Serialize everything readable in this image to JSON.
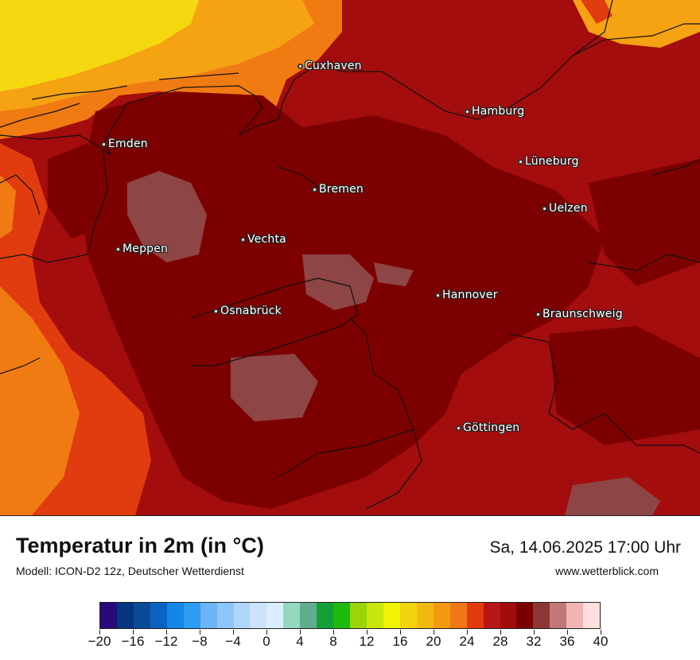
{
  "map": {
    "cities": [
      {
        "name": "Cuxhaven"
      },
      {
        "name": "Hamburg"
      },
      {
        "name": "Emden"
      },
      {
        "name": "Lüneburg"
      },
      {
        "name": "Bremen"
      },
      {
        "name": "Uelzen"
      },
      {
        "name": "Vechta"
      },
      {
        "name": "Meppen"
      },
      {
        "name": "Hannover"
      },
      {
        "name": "Osnabrück"
      },
      {
        "name": "Braunschweig"
      },
      {
        "name": "Göttingen"
      }
    ],
    "colors": {
      "hot_dark": "#7d0000",
      "hot": "#a30d0d",
      "hot_red": "#b51414",
      "orange_red": "#e03c10",
      "orange": "#f07b12",
      "amber": "#f5a213",
      "yellow": "#f5d80f",
      "gray_patch": "#8e4545"
    }
  },
  "header": {
    "title": "Temperatur in 2m (in °C)",
    "subtitle": "Modell: ICON-D2 12z, Deutscher Wetterdienst",
    "datetime": "Sa, 14.06.2025 17:00 Uhr",
    "website": "www.wetterblick.com"
  },
  "legend": {
    "unit": "°C",
    "min": -20,
    "max": 40,
    "colors": [
      "#2a0a7a",
      "#06347e",
      "#0a4a96",
      "#0a63c0",
      "#1287e8",
      "#2d9cf2",
      "#6bb4f5",
      "#8cc6f8",
      "#aed6fa",
      "#cbe4fb",
      "#dbeeff",
      "#96d7c0",
      "#5fae8d",
      "#13a036",
      "#20b90d",
      "#9bd40a",
      "#c9e60a",
      "#f2f205",
      "#f1d40d",
      "#f1b90f",
      "#f19a11",
      "#f07814",
      "#e33a10",
      "#b81616",
      "#a00d0d",
      "#7a0000",
      "#8c3636",
      "#c07878",
      "#f0b4b4",
      "#ffdede"
    ],
    "tick_labels": [
      "−20",
      "−16",
      "−12",
      "−8",
      "−4",
      "0",
      "4",
      "8",
      "12",
      "16",
      "20",
      "24",
      "28",
      "32",
      "36",
      "40"
    ]
  }
}
